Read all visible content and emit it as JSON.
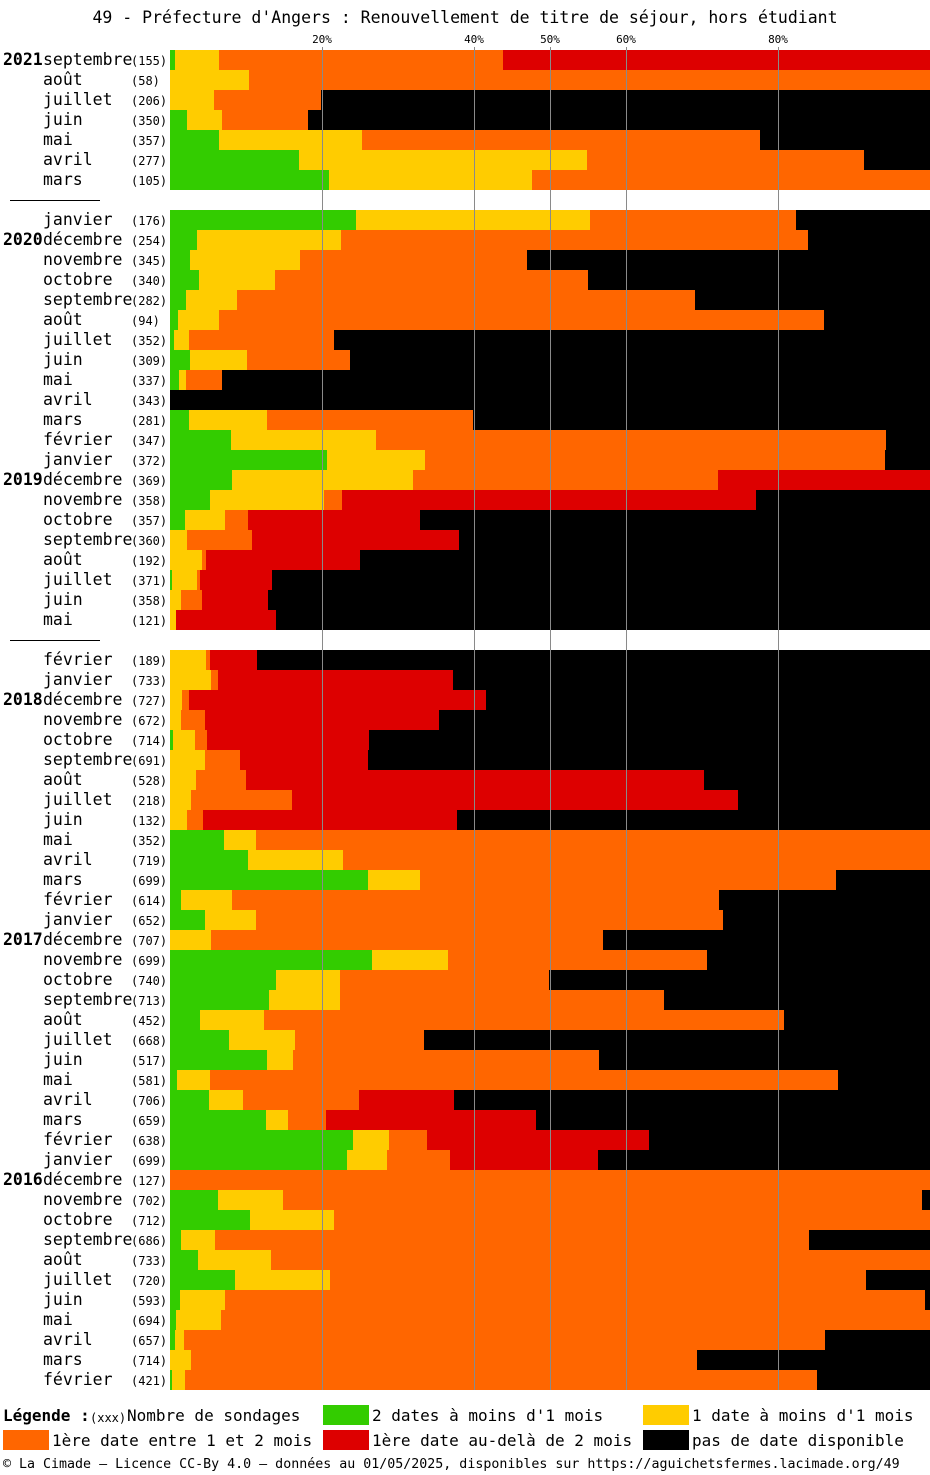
{
  "chart_data": {
    "type": "bar",
    "orientation": "horizontal",
    "stacked": true,
    "title": "49 - Préfecture d'Angers : Renouvellement de titre de séjour, hors étudiant",
    "xlim": [
      0,
      100
    ],
    "grid": true,
    "legend_position": "bottom",
    "x_ticks": [
      {
        "label": "20%",
        "value": 20
      },
      {
        "label": "40%",
        "value": 40
      },
      {
        "label": "50%",
        "value": 50
      },
      {
        "label": "60%",
        "value": 60
      },
      {
        "label": "80%",
        "value": 80
      }
    ],
    "series": [
      {
        "name": "2 dates à moins d'1 mois",
        "color": "#33cc00"
      },
      {
        "name": "1 date à moins d'1 mois",
        "color": "#ffcc00"
      },
      {
        "name": "1ère date entre 1 et 2 mois",
        "color": "#ff6600"
      },
      {
        "name": "1ère date au-delà de 2 mois",
        "color": "#dd0000"
      },
      {
        "name": "pas de date disponible",
        "color": "#000000"
      }
    ],
    "rows": [
      {
        "year": "2021",
        "month": "septembre",
        "n": 155,
        "values": [
          0.7,
          5.8,
          37.4,
          56.2,
          0
        ]
      },
      {
        "month": "août",
        "n": 58,
        "values": [
          0,
          10.4,
          89.6,
          0,
          0
        ]
      },
      {
        "month": "juillet",
        "n": 206,
        "values": [
          0,
          5.8,
          14.1,
          0,
          80.1
        ]
      },
      {
        "month": "juin",
        "n": 350,
        "values": [
          2.2,
          4.6,
          11.4,
          0,
          81.7
        ]
      },
      {
        "month": "mai",
        "n": 357,
        "values": [
          6.4,
          18.8,
          52.4,
          0,
          22.4
        ]
      },
      {
        "month": "avril",
        "n": 277,
        "values": [
          17.0,
          37.9,
          36.4,
          0,
          8.7
        ]
      },
      {
        "month": "mars",
        "n": 105,
        "values": [
          20.9,
          26.7,
          52.4,
          0,
          0
        ]
      },
      {
        "gap": true
      },
      {
        "month": "janvier",
        "n": 176,
        "values": [
          24.5,
          30.7,
          27.2,
          0,
          17.6
        ]
      },
      {
        "year": "2020",
        "month": "décembre",
        "n": 254,
        "values": [
          3.6,
          18.9,
          61.4,
          0,
          16.1
        ]
      },
      {
        "month": "novembre",
        "n": 345,
        "values": [
          2.6,
          14.5,
          29.9,
          0,
          53.0
        ]
      },
      {
        "month": "octobre",
        "n": 340,
        "values": [
          3.8,
          10.0,
          41.2,
          0,
          45.0
        ]
      },
      {
        "month": "septembre",
        "n": 282,
        "values": [
          2.1,
          6.7,
          60.3,
          0,
          30.9
        ]
      },
      {
        "month": "août",
        "n": 94,
        "values": [
          1.1,
          5.3,
          79.7,
          0,
          13.9
        ]
      },
      {
        "month": "juillet",
        "n": 352,
        "values": [
          0.5,
          2.0,
          19.1,
          0,
          78.4
        ]
      },
      {
        "month": "juin",
        "n": 309,
        "values": [
          2.6,
          7.5,
          13.6,
          0,
          76.3
        ]
      },
      {
        "month": "mai",
        "n": 337,
        "values": [
          1.2,
          0.9,
          4.7,
          0,
          93.2
        ]
      },
      {
        "month": "avril",
        "n": 343,
        "values": [
          0,
          0,
          0,
          0,
          100
        ]
      },
      {
        "month": "mars",
        "n": 281,
        "values": [
          2.5,
          10.3,
          27.1,
          0,
          60.1
        ]
      },
      {
        "month": "février",
        "n": 347,
        "values": [
          8.0,
          19.1,
          67.1,
          0,
          5.8
        ]
      },
      {
        "month": "janvier",
        "n": 372,
        "values": [
          20.7,
          12.9,
          60.5,
          0,
          5.9
        ]
      },
      {
        "year": "2019",
        "month": "décembre",
        "n": 369,
        "values": [
          8.2,
          23.8,
          40.1,
          27.9,
          0
        ]
      },
      {
        "month": "novembre",
        "n": 358,
        "values": [
          5.3,
          15.0,
          2.4,
          54.5,
          22.9
        ]
      },
      {
        "month": "octobre",
        "n": 357,
        "values": [
          2.0,
          5.3,
          3.0,
          22.6,
          67.1
        ]
      },
      {
        "month": "septembre",
        "n": 360,
        "values": [
          0,
          2.2,
          8.6,
          27.2,
          62.0
        ]
      },
      {
        "month": "août",
        "n": 192,
        "values": [
          0,
          4.2,
          0.5,
          20.3,
          75.0
        ]
      },
      {
        "month": "juillet",
        "n": 371,
        "values": [
          0.3,
          3.3,
          0.3,
          9.5,
          86.7
        ]
      },
      {
        "month": "juin",
        "n": 358,
        "values": [
          0,
          1.4,
          2.8,
          8.7,
          87.1
        ]
      },
      {
        "month": "mai",
        "n": 121,
        "values": [
          0,
          0.8,
          0,
          13.2,
          86.0
        ]
      },
      {
        "gap": true
      },
      {
        "month": "février",
        "n": 189,
        "values": [
          0,
          4.7,
          0.5,
          6.3,
          88.4
        ]
      },
      {
        "month": "janvier",
        "n": 733,
        "values": [
          0,
          5.4,
          0.9,
          30.9,
          62.8
        ]
      },
      {
        "year": "2018",
        "month": "décembre",
        "n": 727,
        "values": [
          0,
          1.6,
          0.9,
          39.1,
          58.4
        ]
      },
      {
        "month": "novembre",
        "n": 672,
        "values": [
          0,
          1.4,
          3.2,
          30.8,
          64.6
        ]
      },
      {
        "month": "octobre",
        "n": 714,
        "values": [
          0.4,
          2.9,
          1.6,
          21.3,
          73.8
        ]
      },
      {
        "month": "septembre",
        "n": 691,
        "values": [
          0,
          4.6,
          4.6,
          16.8,
          73.9
        ]
      },
      {
        "month": "août",
        "n": 528,
        "values": [
          0,
          3.4,
          6.6,
          60.3,
          29.7
        ]
      },
      {
        "month": "juillet",
        "n": 218,
        "values": [
          0,
          2.8,
          13.3,
          58.7,
          25.3
        ]
      },
      {
        "month": "juin",
        "n": 132,
        "values": [
          0,
          2.2,
          2.2,
          33.3,
          62.2
        ]
      },
      {
        "month": "mai",
        "n": 352,
        "values": [
          7.1,
          4.2,
          88.7,
          0,
          0
        ]
      },
      {
        "month": "avril",
        "n": 719,
        "values": [
          10.3,
          12.5,
          77.2,
          0,
          0
        ]
      },
      {
        "month": "mars",
        "n": 699,
        "values": [
          26.1,
          6.8,
          54.7,
          0,
          12.4
        ]
      },
      {
        "month": "février",
        "n": 614,
        "values": [
          1.4,
          6.8,
          63.9,
          0,
          27.8
        ]
      },
      {
        "month": "janvier",
        "n": 652,
        "values": [
          4.6,
          6.7,
          61.4,
          0,
          27.2
        ]
      },
      {
        "year": "2017",
        "month": "décembre",
        "n": 707,
        "values": [
          0,
          5.4,
          51.6,
          0,
          43.0
        ]
      },
      {
        "month": "novembre",
        "n": 699,
        "values": [
          26.6,
          10.0,
          34.1,
          0,
          29.3
        ]
      },
      {
        "month": "octobre",
        "n": 740,
        "values": [
          13.9,
          8.4,
          27.5,
          0,
          50.1
        ]
      },
      {
        "month": "septembre",
        "n": 713,
        "values": [
          13.0,
          9.3,
          42.6,
          0,
          35.0
        ]
      },
      {
        "month": "août",
        "n": 452,
        "values": [
          3.9,
          8.4,
          68.4,
          0,
          19.2
        ]
      },
      {
        "month": "juillet",
        "n": 668,
        "values": [
          7.8,
          8.6,
          17.1,
          0,
          66.6
        ]
      },
      {
        "month": "juin",
        "n": 517,
        "values": [
          12.8,
          3.4,
          40.3,
          0,
          43.6
        ]
      },
      {
        "month": "mai",
        "n": 581,
        "values": [
          0.9,
          4.3,
          82.6,
          0,
          12.1
        ]
      },
      {
        "month": "avril",
        "n": 706,
        "values": [
          5.1,
          4.5,
          15.3,
          12.5,
          62.6
        ]
      },
      {
        "month": "mars",
        "n": 659,
        "values": [
          12.6,
          2.9,
          5.0,
          27.6,
          51.8
        ]
      },
      {
        "month": "février",
        "n": 638,
        "values": [
          24.1,
          4.7,
          5.0,
          29.2,
          37.0
        ]
      },
      {
        "month": "janvier",
        "n": 699,
        "values": [
          23.3,
          5.3,
          8.3,
          19.5,
          43.7
        ]
      },
      {
        "year": "2016",
        "month": "décembre",
        "n": 127,
        "values": [
          0,
          0,
          100,
          0,
          0
        ]
      },
      {
        "month": "novembre",
        "n": 702,
        "values": [
          6.3,
          8.6,
          84.1,
          0,
          1.1
        ]
      },
      {
        "month": "octobre",
        "n": 712,
        "values": [
          10.5,
          11.1,
          78.4,
          0,
          0
        ]
      },
      {
        "month": "septembre",
        "n": 686,
        "values": [
          1.4,
          4.5,
          78.2,
          0,
          15.9
        ]
      },
      {
        "month": "août",
        "n": 733,
        "values": [
          3.7,
          9.6,
          86.7,
          0,
          0
        ]
      },
      {
        "month": "juillet",
        "n": 720,
        "values": [
          8.6,
          12.5,
          70.5,
          0,
          8.4
        ]
      },
      {
        "month": "juin",
        "n": 593,
        "values": [
          1.3,
          5.9,
          92.1,
          0,
          0.7
        ]
      },
      {
        "month": "mai",
        "n": 694,
        "values": [
          0.8,
          5.9,
          93.3,
          0,
          0
        ]
      },
      {
        "month": "avril",
        "n": 657,
        "values": [
          0.7,
          1.2,
          84.3,
          0,
          13.8
        ]
      },
      {
        "month": "mars",
        "n": 714,
        "values": [
          0,
          2.8,
          66.6,
          0,
          30.7
        ]
      },
      {
        "month": "février",
        "n": 421,
        "values": [
          0.3,
          1.7,
          83.2,
          0,
          14.9
        ]
      }
    ]
  },
  "legend": {
    "heading": "Légende :",
    "count_marker": "(xxx)",
    "count_label": "Nombre de sondages"
  },
  "footer": {
    "text": "© La Cimade — Licence CC-By 4.0 — données au 01/05/2025, disponibles sur https://aguichetsfermes.lacimade.org/49"
  }
}
